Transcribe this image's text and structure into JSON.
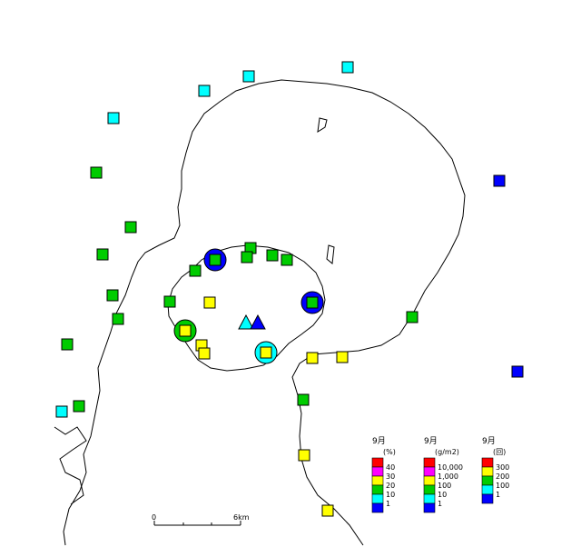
{
  "colors": {
    "red": "#ff0000",
    "magenta": "#ff00ff",
    "yellow": "#ffff00",
    "green": "#00cc00",
    "cyan": "#00ffff",
    "blue": "#0000ff"
  },
  "scale_bar": {
    "start_label": "0",
    "end_label": "6km"
  },
  "legends": [
    {
      "title": "9月",
      "unit": "(%)",
      "items": [
        {
          "color": "red",
          "label": "40"
        },
        {
          "color": "magenta",
          "label": "30"
        },
        {
          "color": "yellow",
          "label": "20"
        },
        {
          "color": "green",
          "label": "10"
        },
        {
          "color": "cyan",
          "label": "1"
        },
        {
          "color": "blue",
          "label": ""
        }
      ]
    },
    {
      "title": "9月",
      "unit": "(g/m2)",
      "items": [
        {
          "color": "red",
          "label": "10,000"
        },
        {
          "color": "magenta",
          "label": "1,000"
        },
        {
          "color": "yellow",
          "label": "100"
        },
        {
          "color": "green",
          "label": "10"
        },
        {
          "color": "cyan",
          "label": "1"
        },
        {
          "color": "blue",
          "label": ""
        }
      ]
    },
    {
      "title": "9月",
      "unit": "(回)",
      "items": [
        {
          "color": "red",
          "label": "300"
        },
        {
          "color": "yellow",
          "label": "200"
        },
        {
          "color": "green",
          "label": "100"
        },
        {
          "color": "cyan",
          "label": "1"
        },
        {
          "color": "blue",
          "label": ""
        }
      ]
    }
  ]
}
